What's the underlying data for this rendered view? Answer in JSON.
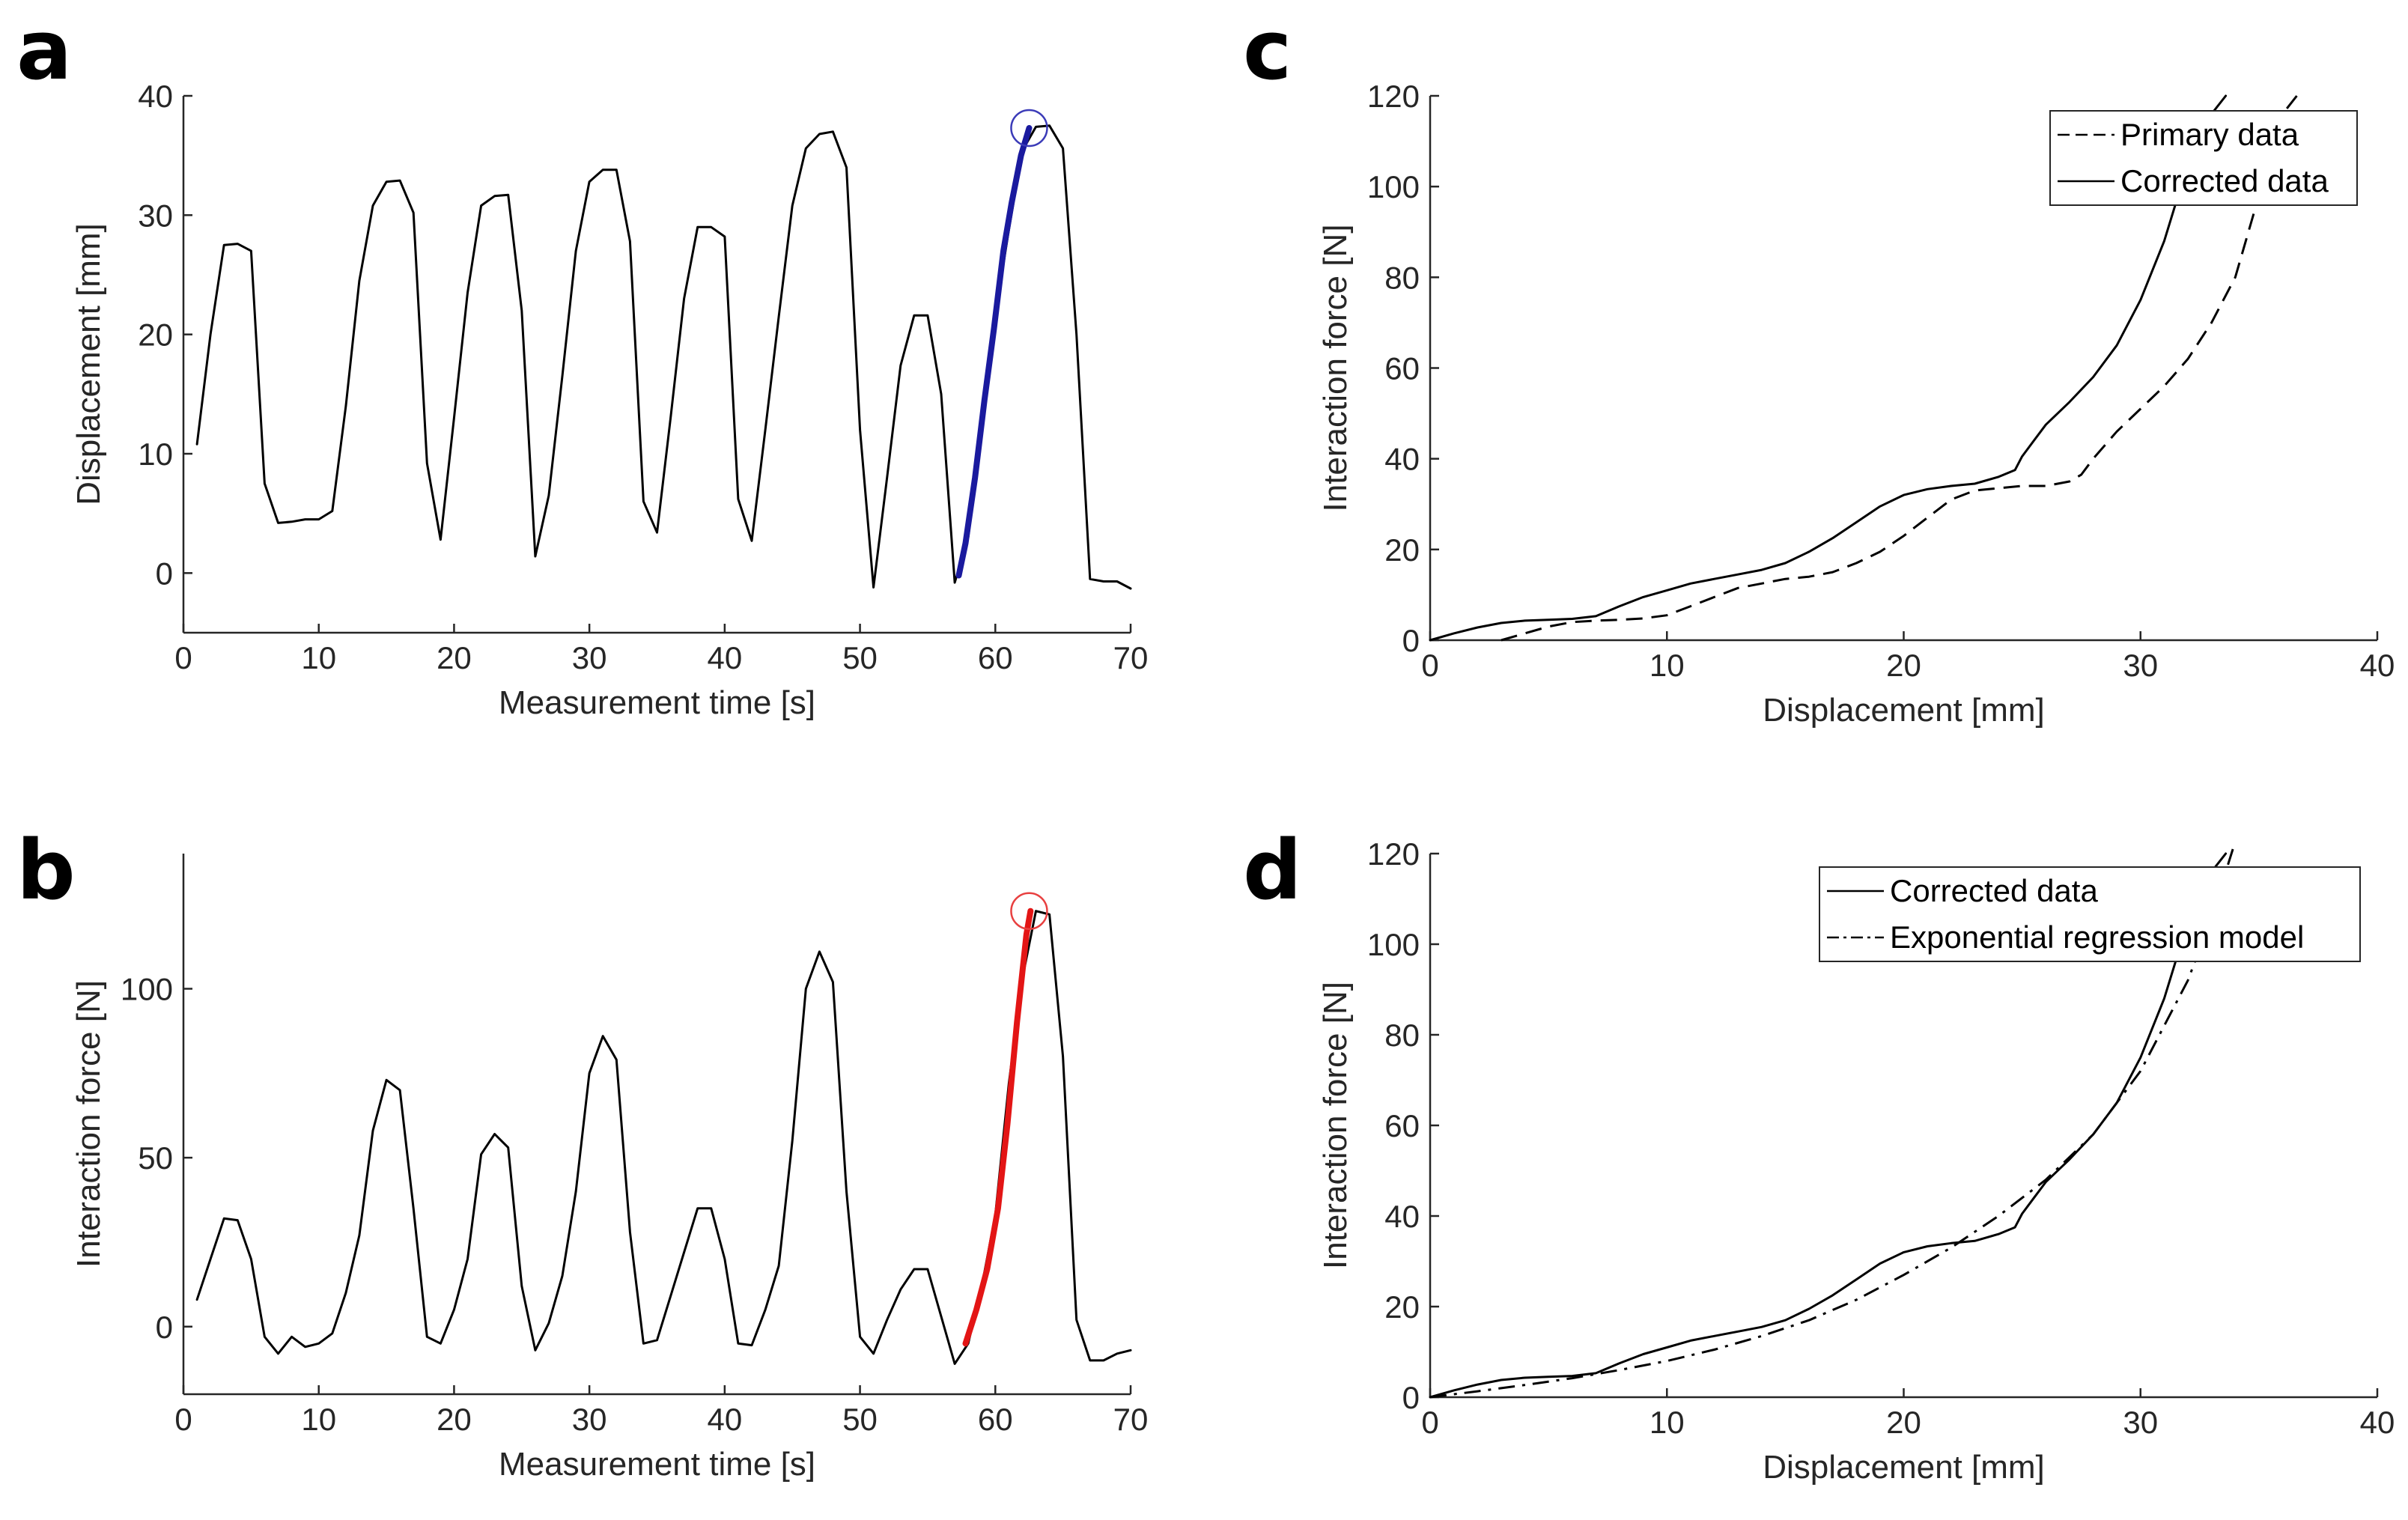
{
  "figure": {
    "panels": [
      "a",
      "b",
      "c",
      "d"
    ]
  },
  "chart_data": [
    {
      "id": "a",
      "type": "line",
      "panel_label": "a",
      "xlabel": "Measurement time [s]",
      "ylabel": "Displacement [mm]",
      "xlim": [
        0,
        70
      ],
      "ylim": [
        -5,
        40
      ],
      "xticks": [
        0,
        10,
        20,
        30,
        40,
        50,
        60,
        70
      ],
      "yticks": [
        0,
        10,
        20,
        30,
        40
      ],
      "legend": null,
      "series": [
        {
          "color": "#000000",
          "style": "solid",
          "width": 3,
          "x": [
            1,
            2,
            3,
            4,
            5,
            6,
            7,
            8,
            9,
            10,
            11,
            12,
            13,
            14,
            15,
            16,
            17,
            18,
            19,
            20,
            21,
            22,
            23,
            24,
            25,
            26,
            27,
            28,
            29,
            30,
            31,
            32,
            33,
            34,
            35,
            36,
            37,
            38,
            39,
            40,
            41,
            42,
            43,
            44,
            45,
            46,
            47,
            48,
            49,
            50,
            51,
            52,
            53,
            54,
            55,
            56,
            57,
            58,
            59,
            60,
            61,
            62,
            63,
            64,
            65,
            66,
            67,
            68,
            69,
            70
          ],
          "y": [
            10.8,
            20,
            27.5,
            27.6,
            27,
            7.5,
            4.2,
            4.3,
            4.5,
            4.5,
            5.2,
            14,
            24.5,
            30.8,
            32.8,
            32.9,
            30.2,
            9.2,
            2.8,
            13,
            23.5,
            30.8,
            31.6,
            31.7,
            22,
            1.4,
            6.5,
            16.5,
            27,
            32.8,
            33.8,
            33.8,
            27.8,
            6,
            3.4,
            13,
            23,
            29,
            29,
            28.2,
            6.2,
            2.7,
            12,
            21.5,
            30.8,
            35.6,
            36.8,
            37,
            34,
            12,
            -1.2,
            8,
            17.4,
            21.6,
            21.6,
            15,
            -0.8,
            3,
            12,
            21.6,
            28.8,
            35.4,
            37.4,
            37.5,
            35.6,
            20,
            -0.5,
            -0.7,
            -0.7,
            -1.3
          ]
        },
        {
          "color": "#1a1a9e",
          "style": "solid",
          "width": 8,
          "x": [
            57.3,
            57.8,
            58.5,
            59.2,
            59.9,
            60.6,
            61.2,
            61.9,
            62.5
          ],
          "y": [
            -0.2,
            2.5,
            8,
            14.5,
            20.5,
            27,
            31,
            35,
            37.3
          ]
        }
      ],
      "markers": [
        {
          "x": 62.5,
          "y": 37.3,
          "color": "#3b3bb8",
          "shape": "circle"
        }
      ]
    },
    {
      "id": "b",
      "type": "line",
      "panel_label": "b",
      "xlabel": "Measurement time [s]",
      "ylabel": "Interaction force [N]",
      "xlim": [
        0,
        70
      ],
      "ylim": [
        -20,
        140
      ],
      "xticks": [
        0,
        10,
        20,
        30,
        40,
        50,
        60,
        70
      ],
      "yticks": [
        0,
        50,
        100
      ],
      "legend": null,
      "series": [
        {
          "color": "#000000",
          "style": "solid",
          "width": 3,
          "x": [
            1,
            2,
            3,
            4,
            5,
            6,
            7,
            8,
            9,
            10,
            11,
            12,
            13,
            14,
            15,
            16,
            17,
            18,
            19,
            20,
            21,
            22,
            23,
            24,
            25,
            26,
            27,
            28,
            29,
            30,
            31,
            32,
            33,
            34,
            35,
            36,
            37,
            38,
            39,
            40,
            41,
            42,
            43,
            44,
            45,
            46,
            47,
            48,
            49,
            50,
            51,
            52,
            53,
            54,
            55,
            56,
            57,
            58,
            59,
            60,
            61,
            62,
            63,
            64,
            65,
            66,
            67,
            68,
            69,
            70
          ],
          "y": [
            8,
            20,
            32,
            31.5,
            20,
            -3,
            -8,
            -3,
            -6,
            -5,
            -2,
            10,
            27,
            58,
            73,
            70,
            35,
            -3,
            -5,
            5,
            20,
            51,
            57,
            53,
            12,
            -7,
            1,
            15,
            40,
            75,
            86,
            79,
            28,
            -5,
            -4,
            9,
            22,
            35,
            35,
            20,
            -5,
            -5.5,
            5,
            18,
            55,
            100,
            111,
            102,
            40,
            -3,
            -8,
            2,
            11,
            17,
            17,
            3,
            -11,
            -5,
            12,
            33,
            72,
            103,
            123,
            122,
            80,
            2,
            -10,
            -10,
            -8,
            -7
          ]
        },
        {
          "color": "#e31515",
          "style": "solid",
          "width": 8,
          "x": [
            57.8,
            58.6,
            59.4,
            60.2,
            60.9,
            61.6,
            62.3,
            62.6
          ],
          "y": [
            -5,
            5,
            17,
            35,
            60,
            90,
            116,
            123
          ]
        }
      ],
      "markers": [
        {
          "x": 62.5,
          "y": 123,
          "color": "#e84040",
          "shape": "circle"
        }
      ]
    },
    {
      "id": "c",
      "type": "line",
      "panel_label": "c",
      "xlabel": "Displacement [mm]",
      "ylabel": "Interaction force [N]",
      "xlim": [
        0,
        40
      ],
      "ylim": [
        0,
        120
      ],
      "xticks": [
        0,
        10,
        20,
        30,
        40
      ],
      "yticks": [
        0,
        20,
        40,
        60,
        80,
        100,
        120
      ],
      "legend": {
        "position": "top-right",
        "entries": [
          "Primary data",
          "Corrected data"
        ]
      },
      "series": [
        {
          "name": "Primary data",
          "color": "#000000",
          "style": "dashed",
          "width": 3,
          "x": [
            3,
            4,
            5,
            6,
            7,
            8,
            9,
            10,
            11,
            12,
            13,
            14,
            15,
            16,
            17,
            18,
            19,
            20,
            21,
            22,
            23,
            24,
            25,
            26,
            27,
            27.5,
            28,
            29,
            30,
            31,
            32,
            33,
            34,
            35,
            36,
            36.6
          ],
          "y": [
            0,
            1.5,
            3,
            4,
            4.3,
            4.5,
            4.8,
            5.5,
            7.5,
            9.5,
            11.5,
            12.5,
            13.5,
            14,
            15,
            17,
            19.5,
            23,
            27,
            31,
            33,
            33.5,
            34,
            34,
            35,
            36.5,
            40,
            46,
            51,
            56,
            62,
            70,
            80,
            98,
            116,
            120
          ]
        },
        {
          "name": "Corrected data",
          "color": "#000000",
          "style": "solid",
          "width": 3,
          "x": [
            0,
            1,
            2,
            3,
            4,
            5,
            6,
            7,
            8,
            9,
            10,
            11,
            12,
            13,
            14,
            15,
            16,
            17,
            18,
            19,
            20,
            21,
            22,
            23,
            24,
            24.7,
            25,
            25.5,
            26,
            27,
            28,
            29,
            30,
            31,
            32,
            33,
            33.6
          ],
          "y": [
            0,
            1.5,
            2.8,
            3.8,
            4.3,
            4.5,
            4.7,
            5.3,
            7.5,
            9.5,
            11,
            12.5,
            13.5,
            14.5,
            15.5,
            17,
            19.5,
            22.5,
            26,
            29.5,
            32,
            33.3,
            34,
            34.5,
            36,
            37.5,
            40.5,
            44,
            47.5,
            52.5,
            58,
            65,
            75,
            88,
            105,
            116,
            120
          ]
        }
      ],
      "markers": []
    },
    {
      "id": "d",
      "type": "line",
      "panel_label": "d",
      "xlabel": "Displacement [mm]",
      "ylabel": "Interaction force [N]",
      "xlim": [
        0,
        40
      ],
      "ylim": [
        0,
        120
      ],
      "xticks": [
        0,
        10,
        20,
        30,
        40
      ],
      "yticks": [
        0,
        20,
        40,
        60,
        80,
        100,
        120
      ],
      "legend": {
        "position": "top-right",
        "entries": [
          "Corrected data",
          "Exponential regression model"
        ]
      },
      "series": [
        {
          "name": "Corrected data",
          "color": "#000000",
          "style": "solid",
          "width": 3,
          "x": [
            0,
            1,
            2,
            3,
            4,
            5,
            6,
            7,
            8,
            9,
            10,
            11,
            12,
            13,
            14,
            15,
            16,
            17,
            18,
            19,
            20,
            21,
            22,
            23,
            24,
            24.7,
            25,
            25.5,
            26,
            27,
            28,
            29,
            30,
            31,
            32,
            33,
            33.6
          ],
          "y": [
            0,
            1.5,
            2.8,
            3.8,
            4.3,
            4.5,
            4.7,
            5.3,
            7.5,
            9.5,
            11,
            12.5,
            13.5,
            14.5,
            15.5,
            17,
            19.5,
            22.5,
            26,
            29.5,
            32,
            33.3,
            34,
            34.5,
            36,
            37.5,
            40.5,
            44,
            47.5,
            52.5,
            58,
            65,
            75,
            88,
            105,
            116,
            120
          ]
        },
        {
          "name": "Exponential regression model",
          "color": "#000000",
          "style": "dashdot",
          "width": 3,
          "x": [
            0,
            2,
            4,
            6,
            8,
            10,
            12,
            14,
            16,
            18,
            20,
            22,
            24,
            26,
            28,
            30,
            32,
            33,
            33.9
          ],
          "y": [
            0,
            1.3,
            2.7,
            4.2,
            6,
            8,
            10.5,
            13.5,
            17,
            21.5,
            27,
            33,
            40,
            48,
            58,
            72,
            92,
            106,
            121
          ]
        }
      ],
      "markers": []
    }
  ]
}
